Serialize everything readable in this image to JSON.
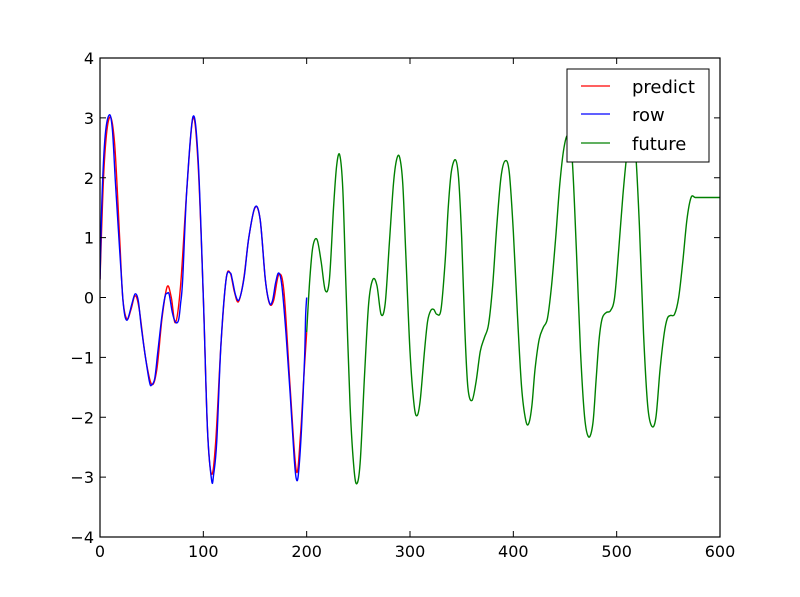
{
  "chart_data": {
    "type": "line",
    "title": "",
    "xlabel": "",
    "ylabel": "",
    "xlim": [
      0,
      600
    ],
    "ylim": [
      -4,
      4
    ],
    "grid": false,
    "legend_position": "upper right",
    "x_ticks": [
      0,
      100,
      200,
      300,
      400,
      500,
      600
    ],
    "y_ticks": [
      -4,
      -3,
      -2,
      -1,
      0,
      1,
      2,
      3,
      4
    ],
    "x_tick_labels": [
      "0",
      "100",
      "200",
      "300",
      "400",
      "500",
      "600"
    ],
    "y_tick_labels": [
      "−4",
      "−3",
      "−2",
      "−1",
      "0",
      "1",
      "2",
      "3",
      "4"
    ],
    "series": [
      {
        "name": "predict",
        "color": "#ff0000",
        "x": [
          0,
          4,
          9,
          14,
          19,
          22,
          26,
          30,
          34,
          38,
          44,
          50,
          55,
          60,
          65,
          69,
          73,
          78,
          84,
          90,
          95,
          100,
          104,
          108,
          112,
          117,
          122,
          126,
          130,
          134,
          139,
          144,
          150,
          155,
          160,
          164,
          168,
          173,
          178,
          184,
          190,
          194,
          197,
          200
        ],
        "values": [
          0.3,
          2.2,
          3.0,
          2.6,
          1.0,
          0.0,
          -0.36,
          -0.2,
          0.03,
          -0.2,
          -1.0,
          -1.45,
          -1.2,
          -0.35,
          0.18,
          0.0,
          -0.42,
          0.2,
          1.8,
          3.0,
          2.2,
          0.0,
          -2.2,
          -2.95,
          -2.4,
          -0.8,
          0.3,
          0.41,
          0.1,
          -0.07,
          0.3,
          1.0,
          1.5,
          1.3,
          0.3,
          -0.1,
          -0.05,
          0.38,
          0.1,
          -1.5,
          -2.9,
          -2.3,
          -1.4,
          -0.58
        ]
      },
      {
        "name": "row",
        "color": "#0000ff",
        "x": [
          0,
          2,
          5,
          9,
          12,
          15,
          19,
          22,
          24,
          26,
          28,
          31,
          34,
          37,
          40,
          44,
          48,
          50,
          53,
          56,
          60,
          63,
          65,
          67,
          70,
          73,
          76,
          78,
          80,
          84,
          90,
          95,
          100,
          104,
          108,
          110,
          113,
          117,
          122,
          126,
          128,
          131,
          134,
          137,
          140,
          144,
          150,
          155,
          160,
          164,
          167,
          170,
          173,
          176,
          180,
          184,
          188,
          190,
          192,
          195,
          198,
          199,
          200
        ],
        "values": [
          0.3,
          1.7,
          2.7,
          3.05,
          2.8,
          1.9,
          0.8,
          0.0,
          -0.3,
          -0.38,
          -0.3,
          -0.1,
          0.06,
          -0.05,
          -0.5,
          -1.0,
          -1.42,
          -1.46,
          -1.35,
          -0.9,
          -0.3,
          0.02,
          0.07,
          0.05,
          -0.25,
          -0.41,
          -0.38,
          -0.1,
          0.3,
          1.8,
          3.02,
          2.3,
          0.0,
          -2.2,
          -3.05,
          -2.95,
          -2.4,
          -0.8,
          0.3,
          0.41,
          0.3,
          0.05,
          -0.05,
          0.1,
          0.4,
          1.0,
          1.51,
          1.3,
          0.3,
          -0.09,
          -0.05,
          0.25,
          0.41,
          0.2,
          -0.6,
          -1.6,
          -2.7,
          -3.03,
          -2.95,
          -2.2,
          -1.0,
          -0.3,
          0.0
        ]
      },
      {
        "name": "future",
        "color": "#008000",
        "x": [
          200,
          203,
          206,
          210,
          214,
          218,
          222,
          226,
          229,
          232,
          235,
          238,
          242,
          246,
          249,
          252,
          256,
          260,
          264,
          268,
          272,
          276,
          280,
          284,
          287,
          290,
          293,
          296,
          300,
          304,
          307,
          310,
          314,
          317,
          320,
          323,
          326,
          330,
          334,
          337,
          340,
          344,
          347,
          350,
          353,
          356,
          360,
          364,
          368,
          372,
          376,
          380,
          384,
          388,
          392,
          396,
          400,
          404,
          408,
          412,
          415,
          418,
          421,
          425,
          429,
          433,
          437,
          441,
          445,
          449,
          453,
          457,
          461,
          465,
          469,
          473,
          477,
          480,
          483,
          486,
          490,
          494,
          498,
          502,
          506,
          510,
          514,
          518,
          522,
          526,
          530,
          534,
          538,
          542,
          546,
          549,
          552,
          556,
          560,
          564,
          568,
          572,
          576,
          580,
          584,
          588,
          592,
          596,
          600
        ],
        "values": [
          -0.58,
          0.3,
          0.85,
          0.97,
          0.6,
          0.12,
          0.3,
          1.5,
          2.2,
          2.38,
          1.8,
          0.2,
          -1.8,
          -2.9,
          -3.1,
          -2.7,
          -1.3,
          -0.1,
          0.3,
          0.2,
          -0.28,
          -0.1,
          0.9,
          1.9,
          2.3,
          2.34,
          1.9,
          0.7,
          -0.9,
          -1.8,
          -1.97,
          -1.7,
          -0.9,
          -0.4,
          -0.22,
          -0.2,
          -0.28,
          -0.2,
          0.6,
          1.5,
          2.1,
          2.3,
          2.0,
          1.0,
          -0.5,
          -1.5,
          -1.72,
          -1.4,
          -0.9,
          -0.67,
          -0.45,
          0.2,
          1.2,
          2.0,
          2.28,
          2.1,
          1.1,
          -0.3,
          -1.5,
          -2.05,
          -2.1,
          -1.8,
          -1.2,
          -0.7,
          -0.5,
          -0.35,
          0.2,
          1.0,
          1.9,
          2.5,
          2.7,
          2.3,
          0.8,
          -0.9,
          -2.0,
          -2.33,
          -2.1,
          -1.4,
          -0.7,
          -0.35,
          -0.25,
          -0.22,
          0.0,
          0.8,
          1.7,
          2.4,
          2.7,
          2.5,
          1.2,
          -0.6,
          -1.8,
          -2.15,
          -2.0,
          -1.2,
          -0.6,
          -0.35,
          -0.3,
          -0.28,
          0.0,
          0.6,
          1.3,
          1.67,
          1.67,
          1.67,
          1.67,
          1.67,
          1.67,
          1.67,
          1.67
        ]
      }
    ]
  },
  "legend": {
    "items": [
      {
        "label": "predict",
        "color": "#ff0000"
      },
      {
        "label": "row",
        "color": "#0000ff"
      },
      {
        "label": "future",
        "color": "#008000"
      }
    ]
  }
}
